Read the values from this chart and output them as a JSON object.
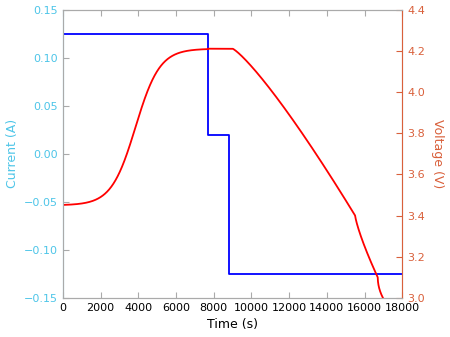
{
  "title": "",
  "xlabel": "Time (s)",
  "ylabel_left": "Current (A)",
  "ylabel_right": "Voltage (V)",
  "xlim": [
    0,
    18000
  ],
  "ylim_current": [
    -0.15,
    0.15
  ],
  "ylim_voltage": [
    3.0,
    4.4
  ],
  "xticks": [
    0,
    2000,
    4000,
    6000,
    8000,
    10000,
    12000,
    14000,
    16000,
    18000
  ],
  "yticks_current": [
    -0.15,
    -0.1,
    -0.05,
    0,
    0.05,
    0.1,
    0.15
  ],
  "yticks_voltage": [
    3.0,
    3.2,
    3.4,
    3.6,
    3.8,
    4.0,
    4.2,
    4.4
  ],
  "current_color": "#4DC5E8",
  "voltage_color": "#D9603B",
  "spine_color": "#AAAAAA",
  "tick_color_current": "#4DC5E8",
  "tick_color_voltage": "#D9603B",
  "background_color": "#FFFFFF",
  "linewidth": 1.3,
  "current_line_color": "#0000FF",
  "voltage_line_color": "#FF0000"
}
